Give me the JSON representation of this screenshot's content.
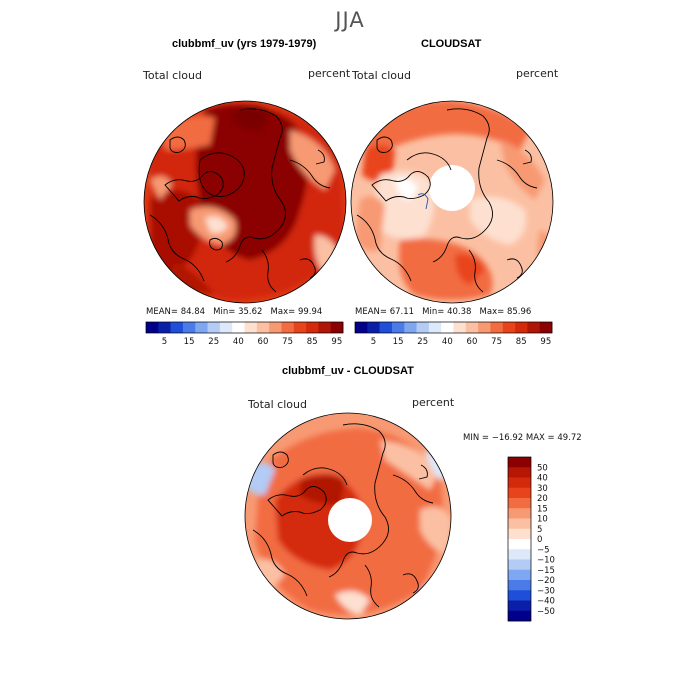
{
  "figure": {
    "season": "JJA",
    "panels": [
      {
        "title": "clubbmf_uv (yrs 1979-1979)",
        "variable": "Total cloud",
        "units": "percent",
        "stats": {
          "mean_label": "MEAN=",
          "mean": "84.84",
          "min_label": "Min=",
          "min": "35.62",
          "max_label": "Max=",
          "max": "99.94"
        }
      },
      {
        "title": "CLOUDSAT",
        "variable": "Total cloud",
        "units": "percent",
        "stats": {
          "mean_label": "MEAN=",
          "mean": "67.11",
          "min_label": "Min=",
          "min": "40.38",
          "max_label": "Max=",
          "max": "85.96"
        }
      },
      {
        "title": "clubbmf_uv - CLOUDSAT",
        "variable": "Total cloud",
        "units": "percent",
        "minmax": "MIN = −16.92  MAX =  49.72"
      }
    ],
    "abs_colorbar": {
      "labels": [
        "5",
        "15",
        "25",
        "40",
        "60",
        "75",
        "85",
        "95"
      ],
      "colors": [
        "#00008b",
        "#0a1fa8",
        "#1f4fd8",
        "#4a7be8",
        "#7fa6f0",
        "#b3cbf5",
        "#dde8fa",
        "#ffffff",
        "#fde0d0",
        "#fbc0a3",
        "#f79a73",
        "#f26c42",
        "#e8441b",
        "#d42a0c",
        "#b01606",
        "#8b0000"
      ]
    },
    "diff_colorbar": {
      "labels": [
        "50",
        "40",
        "30",
        "20",
        "15",
        "10",
        "5",
        "0",
        "−5",
        "−10",
        "−15",
        "−20",
        "−30",
        "−40",
        "−50"
      ],
      "colors": [
        "#8b0000",
        "#b51704",
        "#d42a0c",
        "#e8441b",
        "#f26c42",
        "#f79a73",
        "#fbc0a3",
        "#fde0d0",
        "#ffffff",
        "#dde8fa",
        "#b3cbf5",
        "#7fa6f0",
        "#4a7be8",
        "#1f4fd8",
        "#0a1fa8",
        "#00008b"
      ]
    }
  }
}
